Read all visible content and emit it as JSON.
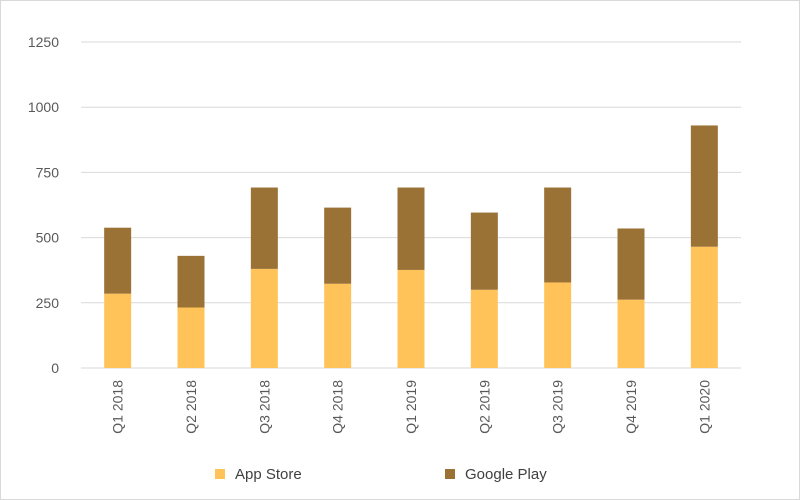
{
  "chart_data": {
    "type": "bar",
    "stacked": true,
    "categories": [
      "Q1 2018",
      "Q2 2018",
      "Q3 2018",
      "Q4 2018",
      "Q1 2019",
      "Q2 2019",
      "Q3 2019",
      "Q4 2019",
      "Q1 2020"
    ],
    "series": [
      {
        "name": "App Store",
        "color": "#FFC35A",
        "values": [
          285,
          232,
          380,
          323,
          376,
          300,
          328,
          262,
          465
        ]
      },
      {
        "name": "Google Play",
        "color": "#9A7236",
        "values": [
          253,
          198,
          312,
          292,
          316,
          296,
          364,
          273,
          465
        ]
      }
    ],
    "ylim": [
      0,
      1250
    ],
    "yticks": [
      "0",
      "250",
      "500",
      "750",
      "1000",
      "1250"
    ],
    "ytick_values": [
      0,
      250,
      500,
      750,
      1000,
      1250
    ],
    "grid": true,
    "legend_position": "bottom",
    "title": "",
    "xlabel": "",
    "ylabel": ""
  }
}
